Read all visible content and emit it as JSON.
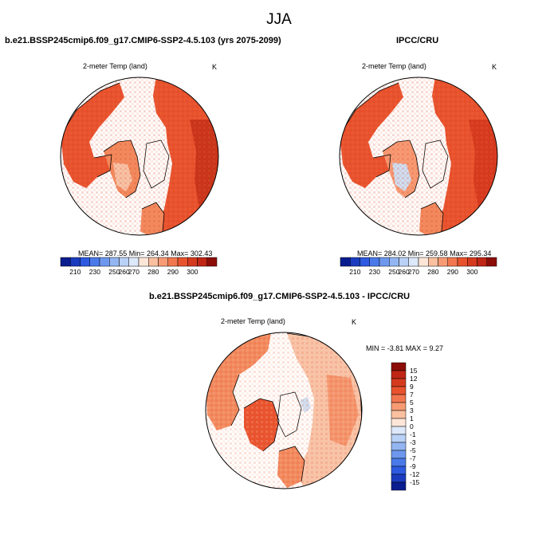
{
  "figure_title": "JJA",
  "colors": {
    "land_red": "#e8532e",
    "land_dark": "#c8341a",
    "land_orange": "#f28a5e",
    "land_pale": "#f8c4a8",
    "ice_blue": "#cfe0f5",
    "coast": "#000000"
  },
  "chart_data": [
    {
      "type": "heatmap",
      "panel": "model",
      "title": "b.e21.BSSP245cmip6.f09_g17.CMIP6-SSP2-4.5.103 (yrs 2075-2099)",
      "variable": "2-meter Temp (land)",
      "units": "K",
      "stats": "MEAN= 287.55  Min= 264.34  Max= 302.43",
      "colorbar": {
        "ticks": [
          "210",
          "230",
          "250",
          "260",
          "270",
          "280",
          "290",
          "300"
        ],
        "colors": [
          "#0a1d8f",
          "#1b3cbf",
          "#2d5ae0",
          "#4a7aea",
          "#6d98ee",
          "#93b6f2",
          "#b9d1f6",
          "#dde8fa",
          "#fde6d8",
          "#fac0a0",
          "#f79b74",
          "#f2774f",
          "#e8532e",
          "#d63a1e",
          "#bf2616",
          "#8c0d08"
        ]
      }
    },
    {
      "type": "heatmap",
      "panel": "observations",
      "title": "IPCC/CRU",
      "variable": "2-meter Temp (land)",
      "units": "K",
      "stats": "MEAN= 284.02  Min= 259.58  Max= 295.34",
      "colorbar": {
        "ticks": [
          "210",
          "230",
          "250",
          "260",
          "270",
          "280",
          "290",
          "300"
        ],
        "colors": [
          "#0a1d8f",
          "#1b3cbf",
          "#2d5ae0",
          "#4a7aea",
          "#6d98ee",
          "#93b6f2",
          "#b9d1f6",
          "#dde8fa",
          "#fde6d8",
          "#fac0a0",
          "#f79b74",
          "#f2774f",
          "#e8532e",
          "#d63a1e",
          "#bf2616",
          "#8c0d08"
        ]
      }
    },
    {
      "type": "heatmap",
      "panel": "difference",
      "title": "b.e21.BSSP245cmip6.f09_g17.CMIP6-SSP2-4.5.103 - IPCC/CRU",
      "variable": "2-meter Temp (land)",
      "units": "K",
      "stats": "MIN =  -3.81 MAX =   9.27",
      "min": -3.81,
      "max": 9.27,
      "colorbar": {
        "labels": [
          "15",
          "12",
          "9",
          "7",
          "5",
          "3",
          "1",
          "0",
          "-1",
          "-3",
          "-5",
          "-7",
          "-9",
          "-12",
          "-15"
        ],
        "colors": [
          "#8c0d08",
          "#bf2616",
          "#d63a1e",
          "#e8532e",
          "#f2774f",
          "#f79b74",
          "#fac0a0",
          "#fde6d8",
          "#dde8fa",
          "#b9d1f6",
          "#93b6f2",
          "#6d98ee",
          "#4a7aea",
          "#2d5ae0",
          "#1b3cbf",
          "#0a1d8f"
        ]
      }
    }
  ]
}
